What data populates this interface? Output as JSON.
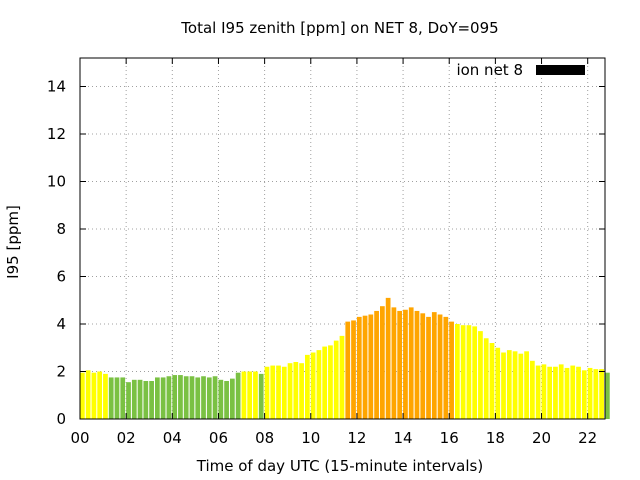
{
  "chart_data": {
    "type": "bar",
    "title": "Total I95 zenith [ppm] on NET 8, DoY=095",
    "xlabel": "Time of day UTC (15-minute intervals)",
    "ylabel": "I95 [ppm]",
    "xlim": [
      0,
      22.75
    ],
    "ylim": [
      0,
      15.2
    ],
    "x_ticks": [
      "00",
      "02",
      "04",
      "06",
      "08",
      "10",
      "12",
      "14",
      "16",
      "18",
      "20",
      "22"
    ],
    "y_ticks": [
      "0",
      "2",
      "4",
      "6",
      "8",
      "10",
      "12",
      "14"
    ],
    "grid": true,
    "legend": {
      "label": "ion net 8",
      "position": "top-right",
      "color": "#000000"
    },
    "bar_interval_hours": 0.25,
    "x_start_hour": 0,
    "values": [
      1.95,
      2.05,
      1.95,
      2.0,
      1.9,
      1.75,
      1.75,
      1.75,
      1.55,
      1.65,
      1.65,
      1.6,
      1.6,
      1.75,
      1.75,
      1.8,
      1.85,
      1.85,
      1.8,
      1.8,
      1.75,
      1.8,
      1.75,
      1.8,
      1.65,
      1.6,
      1.7,
      1.95,
      2.0,
      2.0,
      2.0,
      1.9,
      2.2,
      2.25,
      2.25,
      2.2,
      2.35,
      2.4,
      2.35,
      2.7,
      2.8,
      2.9,
      3.05,
      3.1,
      3.3,
      3.5,
      4.1,
      4.15,
      4.3,
      4.35,
      4.4,
      4.55,
      4.75,
      5.1,
      4.7,
      4.55,
      4.6,
      4.7,
      4.55,
      4.45,
      4.3,
      4.5,
      4.4,
      4.3,
      4.1,
      4.0,
      3.95,
      3.95,
      3.9,
      3.7,
      3.4,
      3.2,
      3.0,
      2.8,
      2.9,
      2.85,
      2.75,
      2.85,
      2.45,
      2.25,
      2.3,
      2.2,
      2.2,
      2.3,
      2.15,
      2.25,
      2.2,
      2.05,
      2.15,
      2.1,
      2.1,
      1.95
    ],
    "colors": [
      "#ffff00",
      "#ffff00",
      "#ffff00",
      "#ffff00",
      "#ffff00",
      "#7ac143",
      "#7ac143",
      "#7ac143",
      "#7ac143",
      "#7ac143",
      "#7ac143",
      "#7ac143",
      "#7ac143",
      "#7ac143",
      "#7ac143",
      "#7ac143",
      "#7ac143",
      "#7ac143",
      "#7ac143",
      "#7ac143",
      "#7ac143",
      "#7ac143",
      "#7ac143",
      "#7ac143",
      "#7ac143",
      "#7ac143",
      "#7ac143",
      "#7ac143",
      "#ffff00",
      "#ffff00",
      "#ffff00",
      "#7ac143",
      "#ffff00",
      "#ffff00",
      "#ffff00",
      "#ffff00",
      "#ffff00",
      "#ffff00",
      "#ffff00",
      "#ffff00",
      "#ffff00",
      "#ffff00",
      "#ffff00",
      "#ffff00",
      "#ffff00",
      "#ffff00",
      "#ffa500",
      "#ffa500",
      "#ffa500",
      "#ffa500",
      "#ffa500",
      "#ffa500",
      "#ffa500",
      "#ffa500",
      "#ffa500",
      "#ffa500",
      "#ffa500",
      "#ffa500",
      "#ffa500",
      "#ffa500",
      "#ffa500",
      "#ffa500",
      "#ffa500",
      "#ffa500",
      "#ffa500",
      "#ffff00",
      "#ffff00",
      "#ffff00",
      "#ffff00",
      "#ffff00",
      "#ffff00",
      "#ffff00",
      "#ffff00",
      "#ffff00",
      "#ffff00",
      "#ffff00",
      "#ffff00",
      "#ffff00",
      "#ffff00",
      "#ffff00",
      "#ffff00",
      "#ffff00",
      "#ffff00",
      "#ffff00",
      "#ffff00",
      "#ffff00",
      "#ffff00",
      "#ffff00",
      "#ffff00",
      "#ffff00",
      "#ffff00",
      "#7ac143"
    ]
  }
}
